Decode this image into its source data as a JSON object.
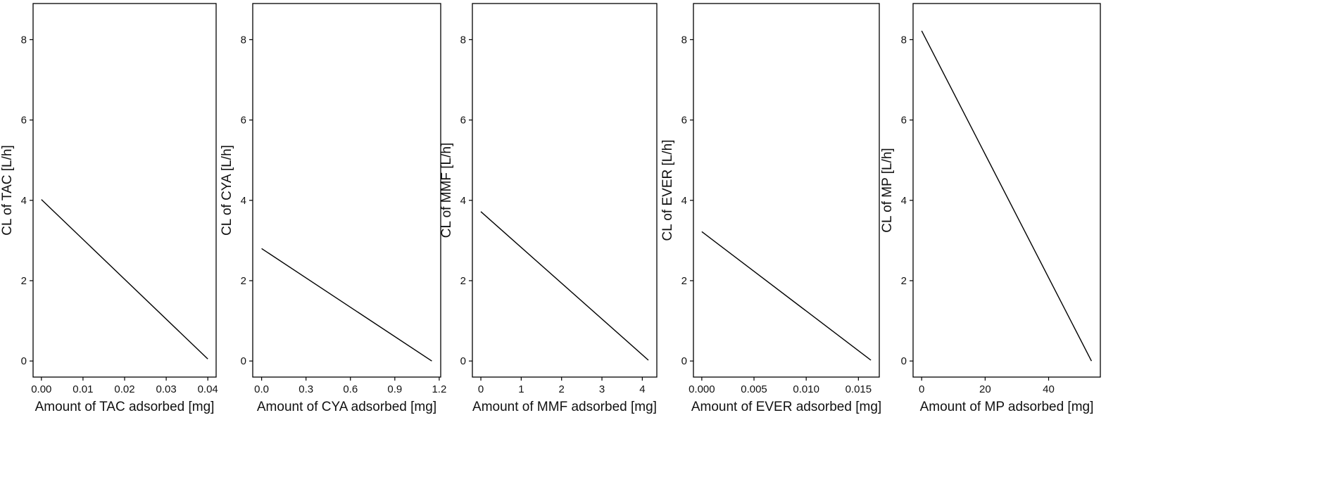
{
  "chart_data": [
    {
      "type": "line",
      "xlabel": "Amount of TAC adsorbed [mg]",
      "ylabel": "CL of TAC [L/h]",
      "xlim": [
        -0.002,
        0.042
      ],
      "ylim": [
        -0.4,
        8.9
      ],
      "xticks": [
        0.0,
        0.01,
        0.02,
        0.03,
        0.04
      ],
      "xtick_labels": [
        "0.00",
        "0.01",
        "0.02",
        "0.03",
        "0.04"
      ],
      "yticks": [
        0,
        2,
        4,
        6,
        8
      ],
      "ytick_labels": [
        "0",
        "2",
        "4",
        "6",
        "8"
      ],
      "grid": false,
      "series": [
        {
          "x": [
            0.0,
            0.04
          ],
          "y": [
            4.02,
            0.05
          ],
          "color": "#000000"
        }
      ]
    },
    {
      "type": "line",
      "xlabel": "Amount of CYA adsorbed [mg]",
      "ylabel": "CL of CYA [L/h]",
      "xlim": [
        -0.06,
        1.21
      ],
      "ylim": [
        -0.4,
        8.9
      ],
      "xticks": [
        0.0,
        0.3,
        0.6,
        0.9,
        1.2
      ],
      "xtick_labels": [
        "0.0",
        "0.3",
        "0.6",
        "0.9",
        "1.2"
      ],
      "yticks": [
        0,
        2,
        4,
        6,
        8
      ],
      "ytick_labels": [
        "0",
        "2",
        "4",
        "6",
        "8"
      ],
      "grid": false,
      "series": [
        {
          "x": [
            0.0,
            1.15
          ],
          "y": [
            2.8,
            0.0
          ],
          "color": "#000000"
        }
      ]
    },
    {
      "type": "line",
      "xlabel": "Amount of MMF adsorbed [mg]",
      "ylabel": "CL of MMF [L/h]",
      "xlim": [
        -0.21,
        4.36
      ],
      "ylim": [
        -0.4,
        8.9
      ],
      "xticks": [
        0,
        1,
        2,
        3,
        4
      ],
      "xtick_labels": [
        "0",
        "1",
        "2",
        "3",
        "4"
      ],
      "yticks": [
        0,
        2,
        4,
        6,
        8
      ],
      "ytick_labels": [
        "0",
        "2",
        "4",
        "6",
        "8"
      ],
      "grid": false,
      "series": [
        {
          "x": [
            0.0,
            4.15
          ],
          "y": [
            3.72,
            0.02
          ],
          "color": "#000000"
        }
      ]
    },
    {
      "type": "line",
      "xlabel": "Amount of EVER adsorbed [mg]",
      "ylabel": "CL of EVER [L/h]",
      "xlim": [
        -0.0008,
        0.017
      ],
      "ylim": [
        -0.4,
        8.9
      ],
      "xticks": [
        0.0,
        0.005,
        0.01,
        0.015
      ],
      "xtick_labels": [
        "0.000",
        "0.005",
        "0.010",
        "0.015"
      ],
      "yticks": [
        0,
        2,
        4,
        6,
        8
      ],
      "ytick_labels": [
        "0",
        "2",
        "4",
        "6",
        "8"
      ],
      "grid": false,
      "series": [
        {
          "x": [
            0.0,
            0.0162
          ],
          "y": [
            3.22,
            0.02
          ],
          "color": "#000000"
        }
      ]
    },
    {
      "type": "line",
      "xlabel": "Amount of MP adsorbed [mg]",
      "ylabel": "CL of MP [L/h]",
      "xlim": [
        -2.7,
        56.3
      ],
      "ylim": [
        -0.4,
        8.9
      ],
      "xticks": [
        0,
        20,
        40
      ],
      "xtick_labels": [
        "0",
        "20",
        "40"
      ],
      "yticks": [
        0,
        2,
        4,
        6,
        8
      ],
      "ytick_labels": [
        "0",
        "2",
        "4",
        "6",
        "8"
      ],
      "grid": false,
      "series": [
        {
          "x": [
            0.0,
            53.5
          ],
          "y": [
            8.22,
            0.0
          ],
          "color": "#000000"
        }
      ]
    }
  ]
}
